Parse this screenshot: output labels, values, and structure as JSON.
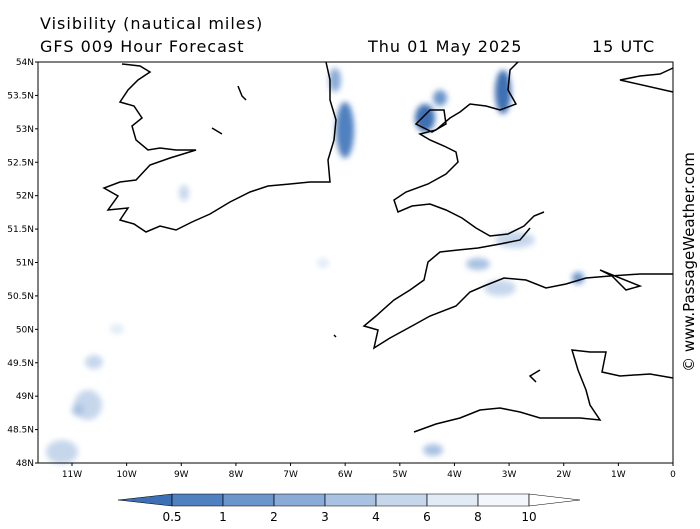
{
  "header": {
    "title": "Visibility (nautical miles)",
    "subtitle": "GFS 009 Hour Forecast",
    "date": "Thu 01 May 2025",
    "time": "15 UTC"
  },
  "watermark": "© www.PassageWeather.com",
  "map": {
    "lat_labels": [
      "54N",
      "53.5N",
      "53N",
      "52.5N",
      "52N",
      "51.5N",
      "51N",
      "50.5N",
      "50N",
      "49.5N",
      "49N",
      "48.5N",
      "48N"
    ],
    "lon_labels": [
      "11W",
      "10W",
      "9W",
      "8W",
      "7W",
      "6W",
      "5W",
      "4W",
      "3W",
      "2W",
      "1W",
      "0"
    ]
  },
  "colorbar": {
    "ticks": [
      0.5,
      1,
      2,
      3,
      4,
      6,
      8,
      10
    ],
    "colors": [
      "#3c6fb4",
      "#4f80c0",
      "#6c95cc",
      "#8aabd7",
      "#a9c2e2",
      "#c6d7ec",
      "#e1ebf6",
      "#f3f7fc",
      "#ffffff"
    ]
  }
}
